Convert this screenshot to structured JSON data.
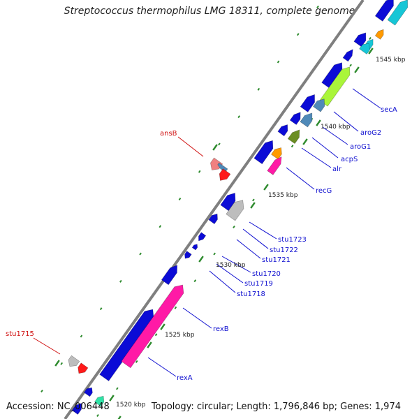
{
  "title": "Streptococcus thermophilus LMG 18311, complete genome",
  "accession": "Accession: NC_006448",
  "summary": "Topology: circular; Length: 1,796,846 bp; Genes: 1,974",
  "colors": {
    "backbone": "#7f7f7f",
    "tick": "#2e8b2e",
    "forward_label": "#1010d0",
    "reverse_label": "#d01010",
    "cds": "#0b0bd6",
    "pink": "#ff1aa6",
    "lime": "#aaf53a",
    "steel": "#4f89b8",
    "olive": "#6b8e23",
    "orange": "#ff9a00",
    "cyan": "#16c6d6",
    "grey": "#bdbdbd",
    "red": "#ff1a1a",
    "salmon": "#f08080"
  },
  "scale_labels": [
    "1545 kbp",
    "1540 kbp",
    "1535 kbp",
    "1530 kbp",
    "1525 kbp",
    "1520 kbp"
  ],
  "forward_gene_labels": [
    "secA",
    "aroG2",
    "aroG1",
    "acpS",
    "alr",
    "recG",
    "stu1723",
    "stu1722",
    "stu1721",
    "stu1720",
    "stu1719",
    "stu1718",
    "rexB",
    "rexA"
  ],
  "reverse_gene_labels": [
    "ansB",
    "stu1715"
  ]
}
